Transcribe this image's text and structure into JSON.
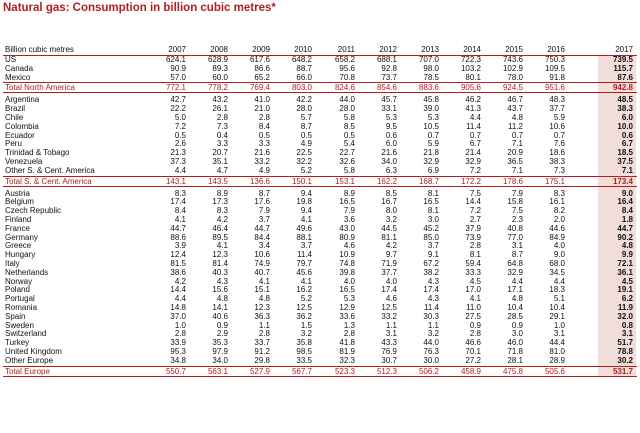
{
  "title": "Natural gas: Consumption in billion cubic metres*",
  "header": {
    "label": "Billion cubic metres",
    "years": [
      "2007",
      "2008",
      "2009",
      "2010",
      "2011",
      "2012",
      "2013",
      "2014",
      "2015",
      "2016",
      "2017"
    ]
  },
  "groups": [
    {
      "rows": [
        {
          "name": "US",
          "values": [
            "624.1",
            "628.9",
            "617.6",
            "648.2",
            "658.2",
            "688.1",
            "707.0",
            "722.3",
            "743.6",
            "750.3",
            "739.5"
          ]
        },
        {
          "name": "Canada",
          "values": [
            "90.9",
            "89.3",
            "86.6",
            "88.7",
            "95.6",
            "92.8",
            "98.0",
            "103.2",
            "102.9",
            "109.5",
            "115.7"
          ]
        },
        {
          "name": "Mexico",
          "values": [
            "57.0",
            "60.0",
            "65.2",
            "66.0",
            "70.8",
            "73.7",
            "78.5",
            "80.1",
            "78.0",
            "91.8",
            "87.6"
          ]
        }
      ],
      "total": {
        "name": "Total North America",
        "values": [
          "772.1",
          "778.2",
          "769.4",
          "803.0",
          "824.6",
          "854.6",
          "883.6",
          "905.6",
          "924.5",
          "951.6",
          "942.8"
        ]
      }
    },
    {
      "rows": [
        {
          "name": "Argentina",
          "values": [
            "42.7",
            "43.2",
            "41.0",
            "42.2",
            "44.0",
            "45.7",
            "45.8",
            "46.2",
            "46.7",
            "48.3",
            "48.5"
          ]
        },
        {
          "name": "Brazil",
          "values": [
            "22.2",
            "26.1",
            "21.0",
            "28.0",
            "28.0",
            "33.1",
            "39.0",
            "41.3",
            "43.7",
            "37.7",
            "38.3"
          ]
        },
        {
          "name": "Chile",
          "values": [
            "5.0",
            "2.8",
            "2.8",
            "5.7",
            "5.8",
            "5.3",
            "5.3",
            "4.4",
            "4.8",
            "5.9",
            "6.0"
          ]
        },
        {
          "name": "Colombia",
          "values": [
            "7.2",
            "7.3",
            "8.4",
            "8.7",
            "8.5",
            "9.5",
            "10.5",
            "11.4",
            "11.2",
            "10.6",
            "10.0"
          ]
        },
        {
          "name": "Ecuador",
          "values": [
            "0.5",
            "0.4",
            "0.5",
            "0.5",
            "0.5",
            "0.6",
            "0.7",
            "0.7",
            "0.7",
            "0.7",
            "0.6"
          ]
        },
        {
          "name": "Peru",
          "values": [
            "2.6",
            "3.3",
            "3.3",
            "4.9",
            "5.4",
            "6.0",
            "5.9",
            "6.7",
            "7.1",
            "7.6",
            "6.7"
          ]
        },
        {
          "name": "Trinidad & Tobago",
          "values": [
            "21.3",
            "20.7",
            "21.6",
            "22.5",
            "22.7",
            "21.6",
            "21.8",
            "21.4",
            "20.9",
            "18.6",
            "18.5"
          ]
        },
        {
          "name": "Venezuela",
          "values": [
            "37.3",
            "35.1",
            "33.2",
            "32.2",
            "32.6",
            "34.0",
            "32.9",
            "32.9",
            "36.5",
            "38.3",
            "37.5"
          ]
        },
        {
          "name": "Other S. & Cent. America",
          "values": [
            "4.4",
            "4.7",
            "4.9",
            "5.2",
            "5.8",
            "6.3",
            "6.9",
            "7.2",
            "7.1",
            "7.3",
            "7.1"
          ]
        }
      ],
      "total": {
        "name": "Total S. & Cent. America",
        "values": [
          "143.1",
          "143.5",
          "136.6",
          "150.1",
          "153.1",
          "162.2",
          "168.7",
          "172.2",
          "178.6",
          "175.1",
          "173.4"
        ]
      }
    },
    {
      "rows": [
        {
          "name": "Austria",
          "values": [
            "8.3",
            "8.9",
            "8.7",
            "9.4",
            "8.9",
            "8.5",
            "8.1",
            "7.5",
            "7.9",
            "8.3",
            "9.0"
          ]
        },
        {
          "name": "Belgium",
          "values": [
            "17.4",
            "17.3",
            "17.6",
            "19.8",
            "16.5",
            "16.7",
            "16.5",
            "14.4",
            "15.8",
            "16.1",
            "16.4"
          ]
        },
        {
          "name": "Czech Republic",
          "values": [
            "8.4",
            "8.3",
            "7.9",
            "9.4",
            "7.9",
            "8.0",
            "8.1",
            "7.2",
            "7.5",
            "8.2",
            "8.4"
          ]
        },
        {
          "name": "Finland",
          "values": [
            "4.1",
            "4.2",
            "3.7",
            "4.1",
            "3.6",
            "3.2",
            "3.0",
            "2.7",
            "2.3",
            "2.0",
            "1.8"
          ]
        },
        {
          "name": "France",
          "values": [
            "44.7",
            "46.4",
            "44.7",
            "49.6",
            "43.0",
            "44.5",
            "45.2",
            "37.9",
            "40.8",
            "44.6",
            "44.7"
          ]
        },
        {
          "name": "Germany",
          "values": [
            "88.6",
            "89.5",
            "84.4",
            "88.1",
            "80.9",
            "81.1",
            "85.0",
            "73.9",
            "77.0",
            "84.9",
            "90.2"
          ]
        },
        {
          "name": "Greece",
          "values": [
            "3.9",
            "4.1",
            "3.4",
            "3.7",
            "4.6",
            "4.2",
            "3.7",
            "2.8",
            "3.1",
            "4.0",
            "4.8"
          ]
        },
        {
          "name": "Hungary",
          "values": [
            "12.4",
            "12.3",
            "10.6",
            "11.4",
            "10.9",
            "9.7",
            "9.1",
            "8.1",
            "8.7",
            "9.0",
            "9.9"
          ]
        },
        {
          "name": "Italy",
          "values": [
            "81.5",
            "81.4",
            "74.9",
            "79.7",
            "74.8",
            "71.9",
            "67.2",
            "59.4",
            "64.8",
            "68.0",
            "72.1"
          ]
        },
        {
          "name": "Netherlands",
          "values": [
            "38.6",
            "40.3",
            "40.7",
            "45.6",
            "39.8",
            "37.7",
            "38.2",
            "33.3",
            "32.9",
            "34.5",
            "36.1"
          ]
        },
        {
          "name": "Norway",
          "values": [
            "4.2",
            "4.3",
            "4.1",
            "4.1",
            "4.0",
            "4.0",
            "4.3",
            "4.5",
            "4.4",
            "4.4",
            "4.5"
          ]
        },
        {
          "name": "Poland",
          "values": [
            "14.4",
            "15.6",
            "15.1",
            "16.2",
            "16.5",
            "17.4",
            "17.4",
            "17.0",
            "17.1",
            "18.3",
            "19.1"
          ]
        },
        {
          "name": "Portugal",
          "values": [
            "4.4",
            "4.8",
            "4.8",
            "5.2",
            "5.3",
            "4.6",
            "4.3",
            "4.1",
            "4.8",
            "5.1",
            "6.2"
          ]
        },
        {
          "name": "Romania",
          "values": [
            "14.8",
            "14.1",
            "12.3",
            "12.5",
            "12.9",
            "12.5",
            "11.4",
            "11.0",
            "10.4",
            "10.4",
            "11.9"
          ]
        },
        {
          "name": "Spain",
          "values": [
            "37.0",
            "40.6",
            "36.3",
            "36.2",
            "33.6",
            "33.2",
            "30.3",
            "27.5",
            "28.5",
            "29.1",
            "32.0"
          ]
        },
        {
          "name": "Sweden",
          "values": [
            "1.0",
            "0.9",
            "1.1",
            "1.5",
            "1.3",
            "1.1",
            "1.1",
            "0.9",
            "0.9",
            "1.0",
            "0.8"
          ]
        },
        {
          "name": "Switzerland",
          "values": [
            "2.8",
            "2.9",
            "2.8",
            "3.2",
            "2.8",
            "3.1",
            "3.2",
            "2.8",
            "3.0",
            "3.1",
            "3.1"
          ]
        },
        {
          "name": "Turkey",
          "values": [
            "33.9",
            "35.3",
            "33.7",
            "35.8",
            "41.8",
            "43.3",
            "44.0",
            "46.6",
            "46.0",
            "44.4",
            "51.7"
          ]
        },
        {
          "name": "United Kingdom",
          "values": [
            "95.3",
            "97.9",
            "91.2",
            "98.5",
            "81.9",
            "76.9",
            "76.3",
            "70.1",
            "71.8",
            "81.0",
            "78.8"
          ]
        },
        {
          "name": "Other Europe",
          "values": [
            "34.8",
            "34.0",
            "29.8",
            "33.5",
            "32.3",
            "30.7",
            "30.0",
            "27.2",
            "28.1",
            "28.9",
            "30.2"
          ]
        }
      ],
      "total": {
        "name": "Total Europe",
        "values": [
          "550.7",
          "563.1",
          "527.9",
          "567.7",
          "523.3",
          "512.3",
          "506.2",
          "458.9",
          "475.8",
          "505.6",
          "531.7"
        ]
      }
    }
  ],
  "colors": {
    "accent": "#b0201f",
    "highlight": "#f1ddd9"
  }
}
